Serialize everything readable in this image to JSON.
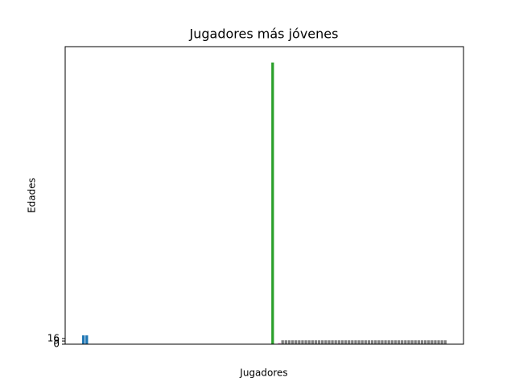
{
  "chart_data": {
    "type": "bar",
    "title": "Jugadores más jóvenes",
    "xlabel": "Jugadores",
    "ylabel": "Edades",
    "categories": [
      null,
      null,
      null,
      null,
      null,
      null,
      null,
      null,
      null,
      null,
      null,
      null,
      null,
      null,
      null,
      null,
      null,
      null,
      null,
      null,
      null,
      null,
      null,
      null,
      null,
      null,
      null,
      null,
      null,
      null,
      null,
      null,
      null,
      null,
      null,
      null,
      null,
      null,
      null,
      null,
      null,
      null,
      null,
      null,
      null,
      null,
      null,
      null,
      null,
      null,
      null,
      null,
      null,
      null,
      null,
      null,
      null,
      null,
      null,
      null,
      null,
      null,
      null,
      null,
      null,
      null,
      null,
      null,
      null,
      null,
      null,
      null,
      null,
      null,
      null,
      null,
      null,
      null,
      null,
      null,
      null,
      null,
      null,
      null,
      null,
      null,
      null,
      null,
      null,
      null,
      null,
      null,
      null,
      null,
      null,
      null,
      null,
      null,
      null,
      null,
      null,
      null,
      null,
      null,
      null,
      null,
      null,
      null,
      null,
      null,
      null,
      null,
      null,
      null,
      null,
      null,
      null,
      null,
      null,
      null
    ],
    "values": [
      0,
      0,
      0,
      0,
      0,
      25,
      25,
      1,
      1,
      1,
      1,
      1,
      1,
      1,
      1,
      1,
      1,
      1,
      1,
      1,
      1,
      1,
      1,
      1,
      1,
      1,
      1,
      1,
      1,
      1,
      1,
      1,
      1,
      1,
      1,
      1,
      1,
      1,
      1,
      1,
      1,
      1,
      1,
      1,
      1,
      1,
      1,
      1,
      1,
      1,
      1,
      1,
      1,
      1,
      1,
      1,
      1,
      1,
      1,
      1,
      1,
      1,
      800,
      0,
      3,
      11,
      11,
      11,
      11,
      11,
      11,
      11,
      11,
      11,
      11,
      11,
      11,
      11,
      11,
      11,
      11,
      11,
      11,
      11,
      11,
      11,
      11,
      11,
      11,
      11,
      11,
      11,
      11,
      11,
      11,
      11,
      11,
      11,
      11,
      11,
      11,
      11,
      11,
      11,
      11,
      11,
      11,
      11,
      11,
      11,
      11,
      11,
      11,
      11,
      11,
      0,
      0,
      0,
      0,
      0
    ],
    "colors": [
      "#1f77b4",
      "#1f77b4",
      "#1f77b4",
      "#1f77b4",
      "#1f77b4",
      "#1f77b4",
      "#1f77b4",
      "#444444",
      "#444444",
      "#444444",
      "#444444",
      "#444444",
      "#444444",
      "#444444",
      "#444444",
      "#444444",
      "#444444",
      "#444444",
      "#444444",
      "#444444",
      "#444444",
      "#444444",
      "#444444",
      "#444444",
      "#444444",
      "#444444",
      "#444444",
      "#444444",
      "#444444",
      "#444444",
      "#444444",
      "#444444",
      "#444444",
      "#444444",
      "#444444",
      "#444444",
      "#444444",
      "#444444",
      "#444444",
      "#444444",
      "#444444",
      "#444444",
      "#444444",
      "#444444",
      "#444444",
      "#444444",
      "#444444",
      "#444444",
      "#444444",
      "#444444",
      "#444444",
      "#444444",
      "#444444",
      "#444444",
      "#444444",
      "#444444",
      "#444444",
      "#444444",
      "#444444",
      "#444444",
      "#444444",
      "#444444",
      "#2ca02c",
      "#e377c2",
      "#e377c2",
      "#7f7f7f",
      "#7f7f7f",
      "#7f7f7f",
      "#7f7f7f",
      "#7f7f7f",
      "#7f7f7f",
      "#7f7f7f",
      "#7f7f7f",
      "#7f7f7f",
      "#7f7f7f",
      "#7f7f7f",
      "#7f7f7f",
      "#7f7f7f",
      "#7f7f7f",
      "#7f7f7f",
      "#7f7f7f",
      "#7f7f7f",
      "#7f7f7f",
      "#7f7f7f",
      "#7f7f7f",
      "#7f7f7f",
      "#7f7f7f",
      "#7f7f7f",
      "#7f7f7f",
      "#7f7f7f",
      "#7f7f7f",
      "#7f7f7f",
      "#7f7f7f",
      "#7f7f7f",
      "#7f7f7f",
      "#7f7f7f",
      "#7f7f7f",
      "#7f7f7f",
      "#7f7f7f",
      "#7f7f7f",
      "#7f7f7f",
      "#7f7f7f",
      "#7f7f7f",
      "#7f7f7f",
      "#7f7f7f",
      "#7f7f7f",
      "#7f7f7f",
      "#7f7f7f",
      "#7f7f7f",
      "#7f7f7f",
      "#7f7f7f",
      "#7f7f7f",
      "#7f7f7f",
      "#7f7f7f",
      "#7f7f7f",
      "#7f7f7f",
      "#7f7f7f",
      "#7f7f7f",
      "#7f7f7f",
      "#7f7f7f",
      "#7f7f7f"
    ],
    "ylim": [
      0,
      845
    ],
    "yticks": [
      0,
      9,
      16
    ]
  }
}
